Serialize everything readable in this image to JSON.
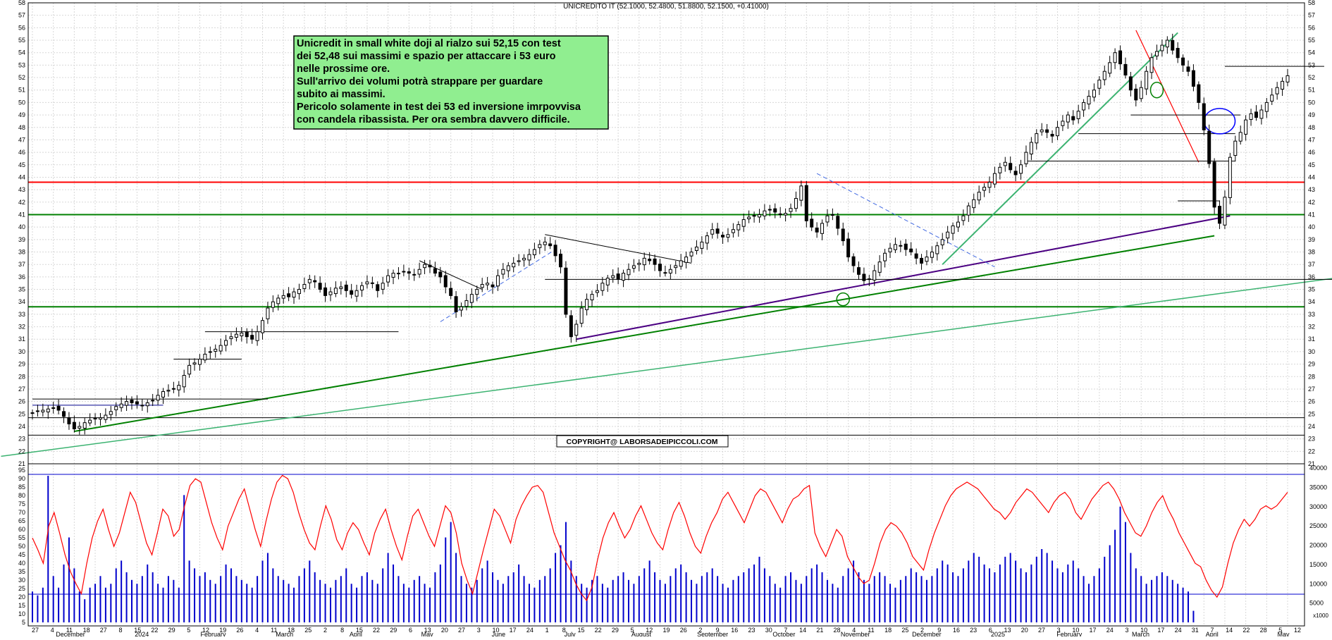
{
  "chart_data": {
    "type": "candlestick",
    "title": "UNICREDITO IT (52.1000, 52.4800, 51.8800, 52.1500, +0.41000)",
    "copyright": "COPYRIGHT@ LABORSADEIPICCOLI.COM",
    "annotation": {
      "lines": [
        "Unicredit in small white doji al rialzo sui 52,15 con test",
        "dei 52,48 sui massimi e spazio per attaccare i 53 euro",
        "nelle prossime ore.",
        "Sull'arrivo dei volumi potrà strappare per guardare",
        "subito ai massimi.",
        "Pericolo solamente in test dei 53 ed inversione imrpovvisa",
        "con candela ribassista. Per ora sembra davvero difficile."
      ],
      "background": "#90ee90"
    },
    "price_axis": {
      "min": 21,
      "max": 58,
      "ticks": [
        21,
        22,
        23,
        24,
        25,
        26,
        27,
        28,
        29,
        30,
        31,
        32,
        33,
        34,
        35,
        36,
        37,
        38,
        39,
        40,
        41,
        42,
        43,
        44,
        45,
        46,
        47,
        48,
        49,
        50,
        51,
        52,
        53,
        54,
        55,
        56,
        57,
        58
      ]
    },
    "oscillator_axis": {
      "ticks": [
        5,
        10,
        15,
        20,
        25,
        30,
        35,
        40,
        45,
        50,
        55,
        60,
        65,
        70,
        75,
        80,
        85,
        90,
        95
      ]
    },
    "volume_axis": {
      "ticks": [
        5000,
        10000,
        15000,
        20000,
        25000,
        30000,
        35000,
        40000
      ],
      "unit_label": "x1000"
    },
    "date_labels": [
      "27",
      "4",
      "11",
      "18",
      "27",
      "8",
      "15",
      "22",
      "29",
      "5",
      "12",
      "19",
      "26",
      "4",
      "11",
      "18",
      "25",
      "2",
      "8",
      "15",
      "22",
      "29",
      "6",
      "13",
      "20",
      "27",
      "3",
      "10",
      "17",
      "24",
      "1",
      "8",
      "15",
      "22",
      "29",
      "5",
      "12",
      "19",
      "26",
      "2",
      "9",
      "16",
      "23",
      "30",
      "7",
      "14",
      "21",
      "28",
      "4",
      "11",
      "18",
      "25",
      "2",
      "9",
      "16",
      "23",
      "6",
      "13",
      "20",
      "27",
      "3",
      "10",
      "17",
      "24",
      "3",
      "10",
      "17",
      "24",
      "31",
      "7",
      "14",
      "22",
      "28",
      "5",
      "12"
    ],
    "month_labels": [
      "December",
      "2024",
      "February",
      "March",
      "April",
      "May",
      "June",
      "July",
      "August",
      "September",
      "October",
      "November",
      "December",
      "2025",
      "February",
      "March",
      "April",
      "May"
    ],
    "colors": {
      "candle": "#000000",
      "oscillator": "#ff0000",
      "volume": "#0000cc",
      "support": "#008000",
      "resistance": "#ff0000",
      "trend": "#4b0082",
      "channel": "#3cb371",
      "dashed": "#4169e1"
    },
    "horizontal_levels": [
      {
        "value": 23.3,
        "color": "#000000"
      },
      {
        "value": 24.7,
        "color": "#000000"
      },
      {
        "value": 33.6,
        "color": "#008000"
      },
      {
        "value": 41.0,
        "color": "#008000"
      },
      {
        "value": 43.6,
        "color": "#ff0000"
      }
    ],
    "series": [
      {
        "name": "close",
        "values": [
          25.1,
          25.2,
          25.3,
          25.4,
          25.5,
          25.3,
          24.8,
          24.2,
          23.8,
          24.0,
          24.3,
          24.5,
          24.6,
          24.7,
          24.9,
          25.2,
          25.6,
          25.8,
          26.0,
          25.9,
          25.8,
          25.7,
          25.9,
          26.1,
          26.5,
          26.8,
          26.9,
          27.0,
          27.3,
          28.1,
          28.9,
          29.1,
          29.4,
          29.8,
          30.0,
          30.2,
          30.5,
          30.9,
          31.2,
          31.4,
          31.5,
          31.2,
          31.0,
          31.6,
          32.5,
          33.5,
          34.0,
          34.3,
          34.5,
          34.4,
          34.8,
          35.0,
          35.4,
          35.8,
          35.6,
          35.0,
          34.5,
          34.8,
          35.1,
          35.2,
          34.9,
          34.6,
          34.9,
          35.3,
          35.6,
          35.5,
          34.9,
          35.5,
          36.1,
          36.3,
          36.3,
          36.4,
          36.3,
          36.2,
          36.6,
          37.0,
          36.8,
          36.3,
          36.0,
          35.2,
          34.5,
          33.2,
          33.6,
          34.1,
          34.6,
          35.0,
          35.4,
          35.5,
          35.2,
          36.1,
          36.6,
          36.9,
          37.1,
          37.3,
          37.5,
          37.8,
          38.2,
          38.6,
          38.8,
          38.5,
          37.7,
          36.8,
          33.0,
          31.2,
          32.2,
          33.5,
          34.2,
          34.6,
          34.9,
          35.5,
          35.9,
          36.1,
          35.8,
          36.3,
          36.6,
          36.9,
          37.1,
          37.5,
          37.3,
          37.0,
          36.5,
          36.3,
          36.6,
          36.9,
          37.3,
          37.6,
          38.0,
          38.4,
          38.8,
          39.3,
          39.8,
          39.5,
          39.2,
          39.4,
          39.8,
          40.2,
          40.6,
          40.8,
          40.9,
          41.0,
          41.3,
          41.4,
          41.2,
          41.0,
          41.1,
          41.5,
          42.3,
          43.3,
          40.5,
          40.0,
          39.6,
          40.3,
          40.9,
          41.0,
          39.9,
          38.9,
          37.6,
          36.9,
          36.2,
          35.7,
          35.8,
          36.5,
          37.2,
          37.9,
          38.3,
          38.6,
          38.5,
          38.2,
          38.0,
          37.5,
          37.1,
          37.6,
          38.0,
          38.5,
          39.0,
          39.6,
          40.1,
          40.4,
          40.9,
          41.7,
          42.2,
          42.8,
          43.2,
          43.6,
          44.3,
          44.8,
          45.2,
          44.6,
          44.2,
          45.0,
          46.0,
          46.8,
          47.5,
          47.8,
          47.6,
          47.3,
          48.0,
          48.5,
          49.0,
          48.6,
          49.3,
          50.0,
          50.5,
          51.0,
          51.8,
          52.5,
          53.2,
          54.0,
          53.1,
          52.2,
          51.0,
          50.2,
          51.2,
          52.5,
          53.6,
          54.1,
          54.6,
          55.0,
          54.2,
          53.6,
          53.0,
          52.5,
          51.3,
          50.0,
          47.8,
          45.1,
          41.6,
          40.3,
          42.4,
          45.6,
          46.9,
          47.6,
          48.6,
          49.1,
          48.8,
          49.4,
          50.0,
          50.6,
          51.2,
          51.7,
          52.15
        ]
      },
      {
        "name": "oscillator",
        "values": [
          55,
          48,
          40,
          62,
          70,
          58,
          45,
          35,
          28,
          22,
          40,
          55,
          65,
          72,
          60,
          50,
          58,
          70,
          82,
          76,
          64,
          52,
          45,
          58,
          72,
          68,
          56,
          60,
          74,
          86,
          90,
          88,
          76,
          64,
          55,
          48,
          62,
          70,
          78,
          84,
          72,
          60,
          50,
          65,
          78,
          88,
          92,
          90,
          82,
          70,
          60,
          52,
          48,
          62,
          74,
          66,
          54,
          48,
          58,
          64,
          60,
          52,
          45,
          58,
          66,
          72,
          60,
          50,
          42,
          56,
          68,
          72,
          64,
          56,
          50,
          62,
          74,
          70,
          58,
          40,
          30,
          22,
          35,
          48,
          60,
          72,
          68,
          60,
          52,
          66,
          74,
          80,
          85,
          86,
          82,
          70,
          58,
          50,
          42,
          36,
          28,
          22,
          18,
          26,
          42,
          55,
          64,
          70,
          62,
          55,
          60,
          68,
          74,
          66,
          58,
          52,
          48,
          60,
          70,
          76,
          68,
          58,
          50,
          46,
          56,
          64,
          70,
          78,
          82,
          76,
          70,
          64,
          72,
          80,
          84,
          82,
          76,
          70,
          64,
          72,
          78,
          80,
          84,
          86,
          58,
          50,
          44,
          52,
          60,
          56,
          44,
          38,
          32,
          28,
          30,
          40,
          52,
          60,
          64,
          62,
          58,
          52,
          44,
          40,
          36,
          48,
          58,
          66,
          74,
          80,
          84,
          86,
          88,
          86,
          84,
          80,
          76,
          72,
          70,
          66,
          70,
          76,
          80,
          84,
          82,
          78,
          74,
          70,
          76,
          80,
          82,
          78,
          70,
          66,
          72,
          78,
          82,
          86,
          88,
          84,
          78,
          70,
          64,
          58,
          56,
          62,
          70,
          76,
          80,
          72,
          66,
          58,
          52,
          46,
          40,
          38,
          30,
          24,
          20,
          26,
          40,
          52,
          60,
          66,
          62,
          66,
          72,
          74,
          72,
          74,
          78,
          82
        ]
      },
      {
        "name": "volume",
        "values": [
          8000,
          7000,
          9000,
          38000,
          12000,
          9000,
          15000,
          22000,
          14000,
          8000,
          6000,
          9000,
          10000,
          12000,
          9000,
          10000,
          14000,
          16000,
          13000,
          11000,
          10000,
          12000,
          15000,
          13000,
          10000,
          9000,
          12000,
          11000,
          9000,
          33000,
          16000,
          14000,
          12000,
          13000,
          11000,
          10000,
          12000,
          15000,
          14000,
          12000,
          11000,
          10000,
          9000,
          12000,
          16000,
          18000,
          14000,
          12000,
          11000,
          10000,
          9000,
          12000,
          14000,
          16000,
          13000,
          11000,
          10000,
          9000,
          11000,
          12000,
          14000,
          10000,
          9000,
          12000,
          13000,
          11000,
          10000,
          14000,
          18000,
          15000,
          12000,
          10000,
          9000,
          11000,
          12000,
          10000,
          9000,
          13000,
          15000,
          22000,
          26000,
          18000,
          12000,
          10000,
          9000,
          11000,
          14000,
          16000,
          13000,
          11000,
          10000,
          12000,
          13000,
          15000,
          12000,
          10000,
          9000,
          11000,
          12000,
          14000,
          18000,
          20000,
          26000,
          16000,
          12000,
          10000,
          9000,
          11000,
          12000,
          10000,
          9000,
          11000,
          12000,
          13000,
          11000,
          10000,
          12000,
          14000,
          16000,
          13000,
          11000,
          10000,
          12000,
          14000,
          15000,
          13000,
          11000,
          10000,
          12000,
          13000,
          14000,
          12000,
          10000,
          9000,
          11000,
          12000,
          13000,
          14000,
          15000,
          17000,
          14000,
          12000,
          10000,
          9000,
          12000,
          13000,
          11000,
          10000,
          12000,
          14000,
          15000,
          13000,
          11000,
          10000,
          9000,
          12000,
          14000,
          16000,
          13000,
          11000,
          10000,
          12000,
          13000,
          12000,
          10000,
          9000,
          11000,
          12000,
          14000,
          13000,
          12000,
          11000,
          12000,
          14000,
          16000,
          15000,
          13000,
          12000,
          14000,
          16000,
          18000,
          17000,
          15000,
          14000,
          13000,
          15000,
          17000,
          18000,
          16000,
          14000,
          13000,
          15000,
          17000,
          19000,
          18000,
          16000,
          14000,
          13000,
          15000,
          16000,
          14000,
          12000,
          10000,
          12000,
          14000,
          17000,
          20000,
          24000,
          30000,
          26000,
          18000,
          14000,
          12000,
          10000,
          11000,
          12000,
          13000,
          12000,
          11000,
          10000,
          9000,
          8000,
          3000
        ]
      }
    ]
  }
}
